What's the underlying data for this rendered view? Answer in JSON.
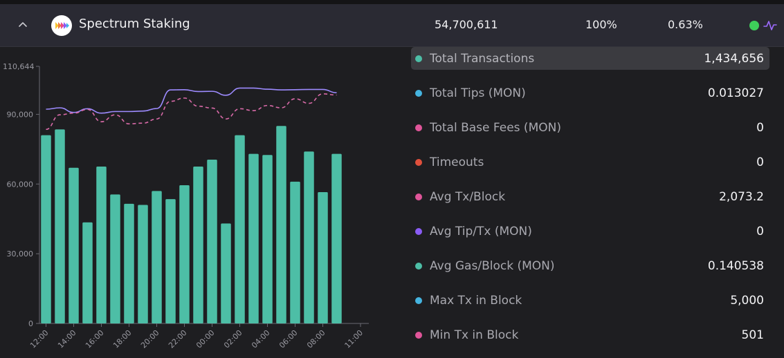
{
  "header": {
    "name": "Spectrum Staking",
    "stake": "54,700,611",
    "uptime": "100%",
    "share": "0.63%",
    "status_color": "#3ecf5a",
    "collapse_icon": "chevron-up-icon",
    "activity_icon": "activity-icon"
  },
  "chart_data": {
    "type": "bar",
    "y_ticks": [
      "110,644",
      "90,000",
      "60,000",
      "30,000",
      "0"
    ],
    "x_ticks": [
      "12:00",
      "14:00",
      "16:00",
      "18:00",
      "20:00",
      "22:00",
      "00:00",
      "02:00",
      "04:00",
      "06:00",
      "08:00",
      "11:00"
    ],
    "ylim": [
      0,
      110644
    ],
    "grid": false,
    "bar_color": "#4dbea6",
    "values": [
      81000,
      83500,
      67000,
      43500,
      67500,
      55500,
      51500,
      51000,
      57000,
      53500,
      59500,
      67500,
      70500,
      43000,
      81000,
      73000,
      72500,
      85000,
      61000,
      74000,
      56500,
      73000
    ],
    "series": [
      {
        "style": "solid",
        "color": "#9d8bff",
        "values": [
          92200,
          92800,
          90800,
          92400,
          90500,
          91200,
          91200,
          91400,
          92500,
          100500,
          100600,
          99800,
          99900,
          98200,
          101300,
          101300,
          100800,
          100500,
          100600,
          100700,
          100700,
          99300
        ]
      },
      {
        "style": "dashed",
        "color": "#d96aa8",
        "values": [
          83500,
          89800,
          90500,
          92100,
          86800,
          89800,
          85900,
          86200,
          88000,
          95600,
          97000,
          93500,
          92700,
          88000,
          92400,
          91600,
          93800,
          92800,
          96700,
          94700,
          98800,
          98300
        ]
      }
    ]
  },
  "metrics": [
    {
      "label": "Total Transactions",
      "value": "1,434,656",
      "color": "#4dbea6",
      "selected": true
    },
    {
      "label": "Total Tips (MON)",
      "value": "0.013027",
      "color": "#45b4e0"
    },
    {
      "label": "Total Base Fees (MON)",
      "value": "0",
      "color": "#e05599"
    },
    {
      "label": "Timeouts",
      "value": "0",
      "color": "#e0503c"
    },
    {
      "label": "Avg Tx/Block",
      "value": "2,073.2",
      "color": "#e05599"
    },
    {
      "label": "Avg Tip/Tx (MON)",
      "value": "0",
      "color": "#8a5cf5"
    },
    {
      "label": "Avg Gas/Block (MON)",
      "value": "0.140538",
      "color": "#4dbea6"
    },
    {
      "label": "Max Tx in Block",
      "value": "5,000",
      "color": "#45b4e0"
    },
    {
      "label": "Min Tx in Block",
      "value": "501",
      "color": "#e05599"
    }
  ]
}
